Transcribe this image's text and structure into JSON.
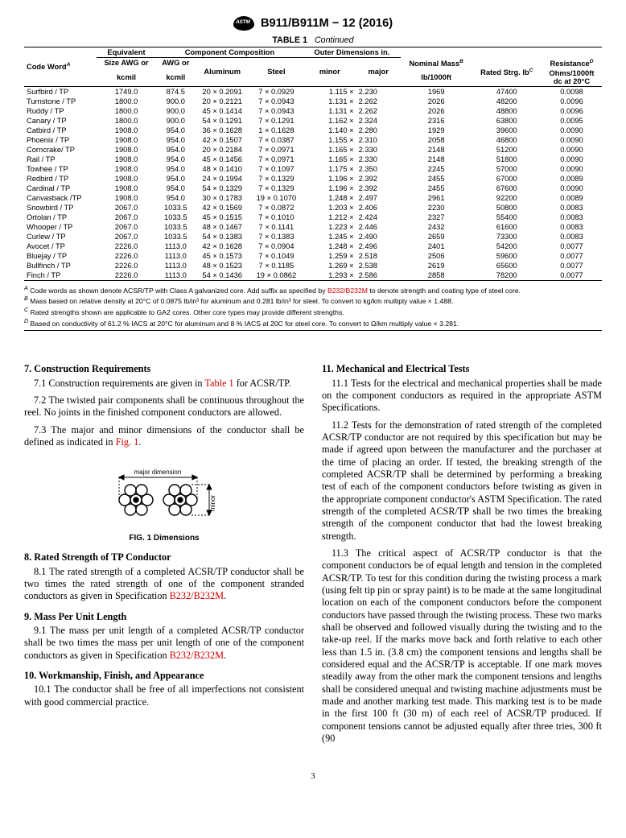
{
  "header": {
    "designation": "B911/B911M − 12 (2016)"
  },
  "table": {
    "title_label": "TABLE 1",
    "title_cont": "Continued",
    "col_group_component": "Component Composition",
    "col_group_outer": "Outer Dimensions in.",
    "head": {
      "code": "Code Word",
      "code_sup": "A",
      "equiv1": "Equivalent",
      "equiv2": "Size AWG or",
      "equiv3": "kcmil",
      "awg1": "AWG or",
      "awg2": "kcmil",
      "alum": "Aluminum",
      "steel": "Steel",
      "minor": "minor",
      "major": "major",
      "mass1": "Nominal Mass",
      "mass_sup": "B",
      "mass2": "lb/1000ft",
      "strg": "Rated Strg. lb",
      "strg_sup": "C",
      "res1": "Resistance",
      "res_sup": "D",
      "res2": "Ohms/1000ft",
      "res3": "dc at 20°C"
    },
    "rows": [
      {
        "c": "Surfbird / TP",
        "e": "1749.0",
        "a": "874.5",
        "al": "20 × 0.2091",
        "st": "7 × 0.0929",
        "mn": "1.115",
        "mj": "2.230",
        "m": "1969",
        "s": "47400",
        "r": "0.0098"
      },
      {
        "c": "Turnstone / TP",
        "e": "1800.0",
        "a": "900.0",
        "al": "20 × 0.2121",
        "st": "7 × 0.0943",
        "mn": "1.131",
        "mj": "2.262",
        "m": "2026",
        "s": "48200",
        "r": "0.0096"
      },
      {
        "c": "Ruddy / TP",
        "e": "1800.0",
        "a": "900.0",
        "al": "45 × 0.1414",
        "st": "7 × 0.0943",
        "mn": "1.131",
        "mj": "2.262",
        "m": "2026",
        "s": "48800",
        "r": "0.0096"
      },
      {
        "c": "Canary / TP",
        "e": "1800.0",
        "a": "900.0",
        "al": "54 × 0.1291",
        "st": "7 × 0.1291",
        "mn": "1.162",
        "mj": "2.324",
        "m": "2316",
        "s": "63800",
        "r": "0.0095"
      },
      {
        "c": "Catbird / TP",
        "e": "1908.0",
        "a": "954.0",
        "al": "36 × 0.1628",
        "st": "1 × 0.1628",
        "mn": "1.140",
        "mj": "2.280",
        "m": "1929",
        "s": "39600",
        "r": "0.0090"
      },
      {
        "c": "Phoenix / TP",
        "e": "1908.0",
        "a": "954.0",
        "al": "42 × 0.1507",
        "st": "7 × 0.0387",
        "mn": "1.155",
        "mj": "2.310",
        "m": "2058",
        "s": "46800",
        "r": "0.0090"
      },
      {
        "c": "Corncrake/ TP",
        "e": "1908.0",
        "a": "954.0",
        "al": "20 × 0.2184",
        "st": "7 × 0.0971",
        "mn": "1.165",
        "mj": "2.330",
        "m": "2148",
        "s": "51200",
        "r": "0.0090"
      },
      {
        "c": "Rail / TP",
        "e": "1908.0",
        "a": "954.0",
        "al": "45 × 0.1456",
        "st": "7 × 0.0971",
        "mn": "1.165",
        "mj": "2.330",
        "m": "2148",
        "s": "51800",
        "r": "0.0090"
      },
      {
        "c": "Towhee / TP",
        "e": "1908.0",
        "a": "954.0",
        "al": "48 × 0.1410",
        "st": "7 × 0.1097",
        "mn": "1.175",
        "mj": "2.350",
        "m": "2245",
        "s": "57000",
        "r": "0.0090"
      },
      {
        "c": "Redbird / TP",
        "e": "1908.0",
        "a": "954.0",
        "al": "24 × 0.1994",
        "st": "7 × 0.1329",
        "mn": "1.196",
        "mj": "2.392",
        "m": "2455",
        "s": "67000",
        "r": "0.0089"
      },
      {
        "c": "Cardinal / TP",
        "e": "1908.0",
        "a": "954.0",
        "al": "54 × 0.1329",
        "st": "7 × 0.1329",
        "mn": "1.196",
        "mj": "2.392",
        "m": "2455",
        "s": "67600",
        "r": "0.0090"
      },
      {
        "c": "Canvasback /TP",
        "e": "1908.0",
        "a": "954.0",
        "al": "30 × 0.1783",
        "st": "19 × 0.1070",
        "mn": "1.248",
        "mj": "2.497",
        "m": "2961",
        "s": "92200",
        "r": "0.0089"
      },
      {
        "c": "Snowbird / TP",
        "e": "2067.0",
        "a": "1033.5",
        "al": "42 × 0.1569",
        "st": "7 × 0.0872",
        "mn": "1.203",
        "mj": "2.406",
        "m": "2230",
        "s": "50800",
        "r": "0.0083"
      },
      {
        "c": "Ortolan / TP",
        "e": "2067.0",
        "a": "1033.5",
        "al": "45 × 0.1515",
        "st": "7 × 0.1010",
        "mn": "1.212",
        "mj": "2.424",
        "m": "2327",
        "s": "55400",
        "r": "0.0083"
      },
      {
        "c": "Whooper / TP",
        "e": "2067.0",
        "a": "1033.5",
        "al": "48 × 0.1467",
        "st": "7 × 0.1141",
        "mn": "1.223",
        "mj": "2.446",
        "m": "2432",
        "s": "61600",
        "r": "0.0083"
      },
      {
        "c": "Curlew / TP",
        "e": "2067.0",
        "a": "1033.5",
        "al": "54 × 0.1383",
        "st": "7 × 0.1383",
        "mn": "1.245",
        "mj": "2.490",
        "m": "2659",
        "s": "73300",
        "r": "0.0083"
      },
      {
        "c": "Avocet / TP",
        "e": "2226.0",
        "a": "1113.0",
        "al": "42 × 0.1628",
        "st": "7 × 0.0904",
        "mn": "1.248",
        "mj": "2.496",
        "m": "2401",
        "s": "54200",
        "r": "0.0077"
      },
      {
        "c": "Bluejay / TP",
        "e": "2226.0",
        "a": "1113.0",
        "al": "45 × 0.1573",
        "st": "7 × 0.1049",
        "mn": "1.259",
        "mj": "2.518",
        "m": "2506",
        "s": "59600",
        "r": "0.0077"
      },
      {
        "c": "Bullfinch / TP",
        "e": "2226.0",
        "a": "1113.0",
        "al": "48 × 0.1523",
        "st": "7 × 0.1185",
        "mn": "1.269",
        "mj": "2.538",
        "m": "2619",
        "s": "65600",
        "r": "0.0077"
      },
      {
        "c": "Finch / TP",
        "e": "2226.0",
        "a": "1113.0",
        "al": "54 × 0.1436",
        "st": "19 × 0.0862",
        "mn": "1.293",
        "mj": "2.586",
        "m": "2858",
        "s": "78200",
        "r": "0.0077"
      }
    ],
    "footnotes": {
      "A_pre": " Code words as shown denote ACSR/TP with Class A galvanized core. Add suffix as specified by ",
      "A_link": "B232/B232M",
      "A_post": " to denote strength and coating type of steel core.",
      "B": " Mass based on relative density at 20°C of 0.0875 lb/in³ for aluminum and 0.281 lb/in³ for steel. To convert to kg/km multiply value × 1.488.",
      "C": " Rated strengths shown are applicable to GA2 cores. Other core types may provide different strengths.",
      "D": " Based on conductivity of 61.2 % IACS at 20°C for aluminum and 8 % IACS at 20C for steel core. To convert to Ω/km multiply value × 3.281."
    }
  },
  "sections": {
    "s7": {
      "title": "7.  Construction Requirements",
      "p1a": "7.1 Construction requirements are given in ",
      "p1link": "Table 1",
      "p1b": " for ACSR/TP.",
      "p2": "7.2 The twisted pair components shall be continuous throughout the reel. No joints in the finished component conductors are allowed.",
      "p3a": "7.3  The major and minor dimensions of the conductor shall be defined as indicated in ",
      "p3link": "Fig. 1",
      "p3b": "."
    },
    "fig": {
      "label_major": "major dimension",
      "label_minor": "minor",
      "caption": "FIG. 1 Dimensions"
    },
    "s8": {
      "title": "8.  Rated Strength of TP Conductor",
      "p1a": "8.1 The rated strength of a completed ACSR/TP conductor shall be two times the rated strength of one of the component stranded conductors as given in Specification ",
      "p1link": "B232/B232M",
      "p1b": "."
    },
    "s9": {
      "title": "9.  Mass Per Unit Length",
      "p1a": "9.1 The mass per unit length of a completed ACSR/TP conductor shall be two times the mass per unit length of one of the component conductors as given in Specification ",
      "p1link": "B232/B232M",
      "p1b": "."
    },
    "s10": {
      "title": "10.  Workmanship, Finish, and Appearance",
      "p1": "10.1 The conductor shall be free of all imperfections not consistent with good commercial practice."
    },
    "s11": {
      "title": "11.  Mechanical and Electrical Tests",
      "p1": "11.1 Tests for the electrical and mechanical properties shall be made on the component conductors as required in the appropriate ASTM Specifications.",
      "p2": "11.2 Tests for the demonstration of rated strength of the completed ACSR/TP conductor are not required by this specification but may be made if agreed upon between the manufacturer and the purchaser at the time of placing an order. If tested, the breaking strength of the completed ACSR/TP shall be determined by performing a breaking test of each of the component conductors before twisting as given in the appropriate component conductor's ASTM Specification. The rated strength of the completed ACSR/TP shall be two times the breaking strength of the component conductor that had the lowest breaking strength.",
      "p3": "11.3 The critical aspect of ACSR/TP conductor is that the component conductors be of equal length and tension in the completed ACSR/TP. To test for this condition during the twisting process a mark (using felt tip pin or spray paint) is to be made at the same longitudinal location on each of the component conductors before the component conductors have passed through the twisting process. These two marks shall be observed and followed visually during the twisting and to the take-up reel. If the marks move back and forth relative to each other less than 1.5 in. (3.8 cm) the component tensions and lengths shall be considered equal and the ACSR/TP is acceptable. If one mark moves steadily away from the other mark the component tensions and lengths shall be considered unequal and twisting machine adjustments must be made and another marking test made. This marking test is to be made in the first 100 ft (30 m) of each reel of ACSR/TP produced. If component tensions cannot be adjusted equally after three tries, 300 ft (90"
    }
  },
  "pagenum": "3"
}
